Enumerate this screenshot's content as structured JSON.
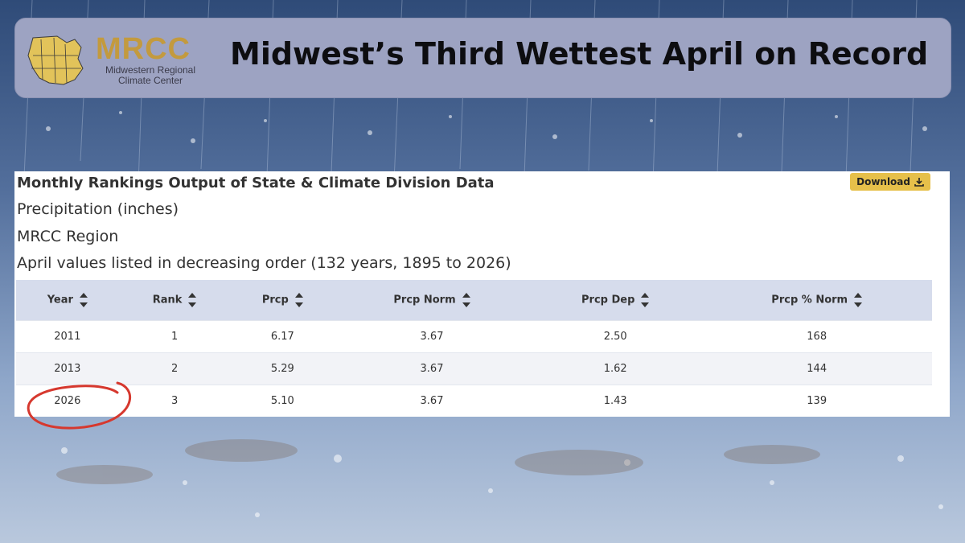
{
  "header": {
    "title": "Midwest’s Third Wettest April on Record",
    "logo": {
      "word": "MRCC",
      "sub_line1": "Midwestern Regional",
      "sub_line2": "Climate Center"
    }
  },
  "card": {
    "title": "Monthly Rankings Output of State & Climate Division Data",
    "line1": "Precipitation (inches)",
    "line2": "MRCC Region",
    "line3": "April values listed in decreasing order (132 years, 1895 to 2026)",
    "download_label": "Download",
    "columns": [
      "Year",
      "Rank",
      "Prcp",
      "Prcp Norm",
      "Prcp Dep",
      "Prcp % Norm"
    ],
    "rows": [
      [
        "2011",
        "1",
        "6.17",
        "3.67",
        "2.50",
        "168"
      ],
      [
        "2013",
        "2",
        "5.29",
        "3.67",
        "1.62",
        "144"
      ],
      [
        "2026",
        "3",
        "5.10",
        "3.67",
        "1.43",
        "139"
      ]
    ]
  },
  "colors": {
    "header_bg": "#9da3c2",
    "logo_gold": "#c39a3e",
    "table_header": "#d6dcec",
    "download_btn": "#e6c04a",
    "highlight_circle": "#d6382e"
  }
}
